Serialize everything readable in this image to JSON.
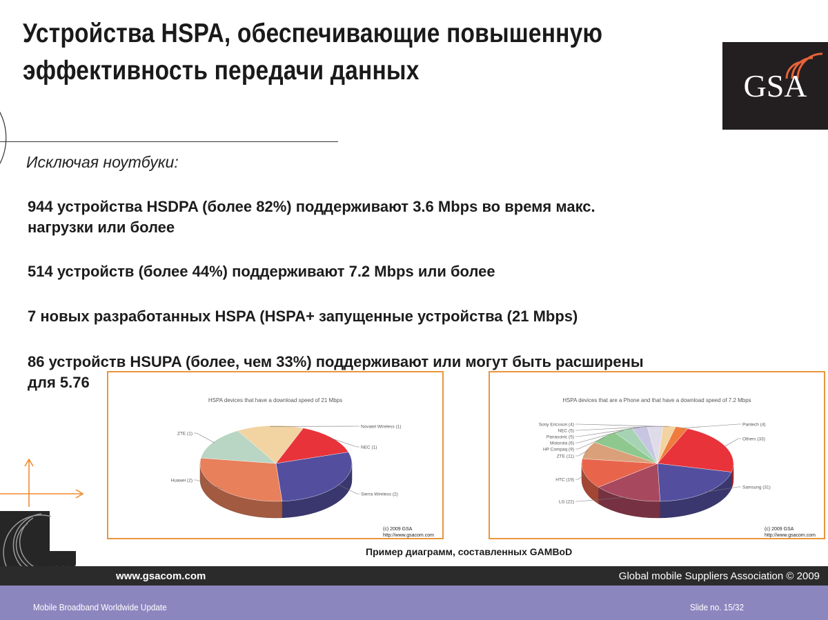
{
  "title_line1": "Устройства HSPA, обеспечивающие повышенную",
  "title_line2": "эффективность передачи данных",
  "logo_text": "GSA",
  "intro": "Исключая ноутбуки:",
  "bullets": {
    "b1_line1": "944 устройства HSDPA (более 82%) поддерживают 3.6 Mbps во время макс.",
    "b1_line2": "нагрузки или более",
    "b2": "514 устройств (более 44%) поддерживают 7.2 Mbps или более",
    "b3": "7 новых разработанных HSPA (HSPA+ запущенные устройства (21 Mbps)",
    "b4_line1": "86 устройств HSUPA (более, чем 33%) поддерживают или могут быть расширены",
    "b4_line2": "для 5.76"
  },
  "chart_data": [
    {
      "type": "pie",
      "title": "HSPA devices  that have a download speed of 21 Mbps",
      "categories": [
        "Novatel Wireless",
        "NEC",
        "Sierra Wireless",
        "Huawei",
        "ZTE"
      ],
      "values": [
        1,
        1,
        2,
        2,
        1
      ],
      "labels": [
        "Novatel Wireless (1)",
        "NEC (1)",
        "Sierra Wireless (2)",
        "Huawei (2)",
        "ZTE (1)"
      ],
      "colors": [
        "#f2d3a2",
        "#e8333a",
        "#534f9e",
        "#e8805c",
        "#b9d5c3"
      ],
      "copyright": [
        "(c) 2009 GSA",
        "http://www.gsacom.com"
      ]
    },
    {
      "type": "pie",
      "title": "HSPA devices  that are a Phone and  that have a download speed of 7.2 Mbps",
      "categories": [
        "Pantech",
        "Others",
        "Samsung",
        "LG",
        "HTC",
        "ZTE",
        "HP Compaq",
        "Motorola",
        "Panasonic",
        "NEC",
        "Sony Ericsson"
      ],
      "values": [
        4,
        33,
        31,
        22,
        19,
        11,
        9,
        6,
        5,
        5,
        4
      ],
      "labels": [
        "Pantech (4)",
        "Others (33)",
        "Samsung (31)",
        "LG (22)",
        "HTC (19)",
        "ZTE (11)",
        "HP Compaq (9)",
        "Motorola (6)",
        "Panasonic (5)",
        "NEC (5)",
        "Sony Ericsson (4)"
      ],
      "colors": [
        "#ef7c3e",
        "#e8333a",
        "#534f9e",
        "#a8485e",
        "#e8654c",
        "#d9a079",
        "#8fc88e",
        "#a6d3b4",
        "#c7c6e2",
        "#e0dbe8",
        "#f2d3a2"
      ],
      "copyright": [
        "(c) 2009 GSA",
        "http://www.gsacom.com"
      ]
    }
  ],
  "caption": "Пример диаграмм, составленных GAMBoD",
  "website": "www.gsacom.com",
  "association": "Global mobile Suppliers Association © 2009",
  "footer_left": "Mobile Broadband Worldwide Update",
  "footer_right": "Slide no. 15/32"
}
